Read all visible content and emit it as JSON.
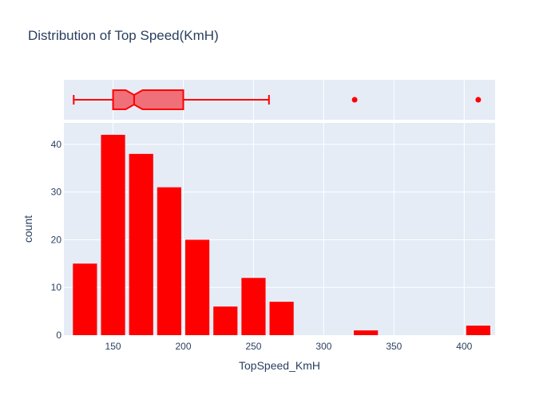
{
  "chart_data": {
    "type": "histogram",
    "title": "Distribution of Top Speed(KmH)",
    "xlabel": "TopSpeed_KmH",
    "ylabel": "count",
    "xlim": [
      115,
      422
    ],
    "ylim": [
      0,
      44.5
    ],
    "x_ticks": [
      150,
      200,
      250,
      300,
      350,
      400
    ],
    "y_ticks": [
      0,
      10,
      20,
      30,
      40
    ],
    "bar_color": "#ff0000",
    "bins": [
      {
        "start": 120,
        "end": 140,
        "count": 15
      },
      {
        "start": 140,
        "end": 160,
        "count": 42
      },
      {
        "start": 160,
        "end": 180,
        "count": 38
      },
      {
        "start": 180,
        "end": 200,
        "count": 31
      },
      {
        "start": 200,
        "end": 220,
        "count": 20
      },
      {
        "start": 220,
        "end": 240,
        "count": 6
      },
      {
        "start": 240,
        "end": 260,
        "count": 12
      },
      {
        "start": 260,
        "end": 280,
        "count": 7
      },
      {
        "start": 320,
        "end": 340,
        "count": 1
      },
      {
        "start": 400,
        "end": 420,
        "count": 2
      }
    ],
    "boxplot": {
      "type": "box",
      "notched": true,
      "whisker_low": 122,
      "q1": 150,
      "median": 165,
      "q3": 200,
      "whisker_high": 261,
      "notch_low": 159,
      "notch_high": 171,
      "outliers": [
        322,
        410
      ],
      "line_color": "#ff0000",
      "fill_color": "#f07079"
    }
  }
}
